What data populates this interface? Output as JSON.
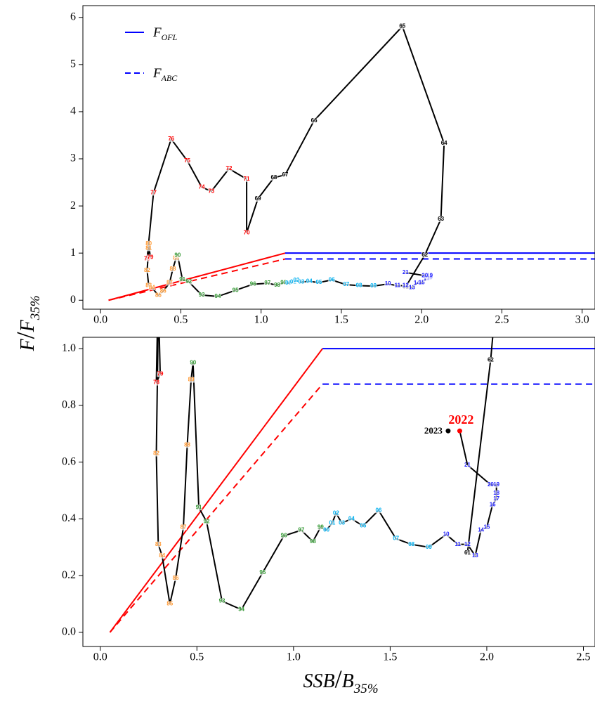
{
  "chart_data": {
    "type": "phase",
    "xlabel": {
      "main": "SSB",
      "sep": "/",
      "ref": "B",
      "sub": "35%"
    },
    "ylabel": {
      "main": "F",
      "sep": "/",
      "ref": "F",
      "sub": "35%"
    },
    "hcr": [
      {
        "name": "F",
        "sub": "OFL",
        "x": [
          0.05,
          1.15
        ],
        "y": [
          0,
          1
        ],
        "dash": false
      },
      {
        "name": "F",
        "sub": "ABC",
        "x": [
          0.05,
          1.15
        ],
        "y": [
          0,
          0.875
        ],
        "dash": true
      }
    ],
    "hcr_colors": [
      "#ff0000",
      "#0000ff"
    ],
    "x": [
      1.9,
      2.02,
      2.12,
      2.14,
      1.88,
      1.33,
      1.15,
      1.08,
      0.98,
      0.91,
      0.91,
      0.8,
      0.69,
      0.63,
      0.54,
      0.44,
      0.33,
      0.29,
      0.31,
      0.3,
      0.3,
      0.29,
      0.3,
      0.32,
      0.36,
      0.39,
      0.43,
      0.45,
      0.47,
      0.48,
      0.51,
      0.55,
      0.63,
      0.73,
      0.84,
      0.95,
      1.04,
      1.1,
      1.14,
      1.17,
      1.2,
      1.22,
      1.25,
      1.3,
      1.36,
      1.44,
      1.53,
      1.61,
      1.7,
      1.79,
      1.85,
      1.9,
      1.94,
      1.97,
      2.0,
      2.03,
      2.05,
      2.05,
      2.05,
      2.02,
      1.9
    ],
    "y": [
      0.28,
      0.96,
      1.72,
      3.33,
      5.81,
      3.81,
      2.66,
      2.6,
      2.15,
      1.43,
      2.57,
      2.79,
      2.31,
      2.4,
      2.96,
      3.42,
      2.28,
      0.88,
      0.91,
      1.2,
      1.1,
      0.63,
      0.31,
      0.27,
      0.1,
      0.19,
      0.37,
      0.66,
      0.89,
      0.95,
      0.44,
      0.39,
      0.11,
      0.08,
      0.21,
      0.34,
      0.36,
      0.32,
      0.37,
      0.36,
      0.385,
      0.42,
      0.385,
      0.4,
      0.375,
      0.43,
      0.33,
      0.31,
      0.3,
      0.345,
      0.31,
      0.31,
      0.27,
      0.36,
      0.37,
      0.45,
      0.47,
      0.49,
      0.52,
      0.52,
      0.59
    ],
    "point_labels": [
      "61",
      "62",
      "63",
      "64",
      "65",
      "66",
      "67",
      "68",
      "69",
      "70",
      "71",
      "72",
      "73",
      "74",
      "75",
      "76",
      "77",
      "78",
      "79",
      "80",
      "81",
      "82",
      "83",
      "84",
      "85",
      "86",
      "87",
      "88",
      "89",
      "90",
      "91",
      "92",
      "93",
      "94",
      "95",
      "96",
      "97",
      "98",
      "99",
      "00",
      "01",
      "02",
      "03",
      "04",
      "05",
      "06",
      "07",
      "08",
      "09",
      "10",
      "11",
      "12",
      "13",
      "14",
      "15",
      "16",
      "17",
      "18",
      "19",
      "20",
      "21"
    ],
    "point_colors": [
      "#000000",
      "#000000",
      "#000000",
      "#000000",
      "#000000",
      "#000000",
      "#000000",
      "#000000",
      "#000000",
      "#ff0000",
      "#ff0000",
      "#ff0000",
      "#ff0000",
      "#ff0000",
      "#ff0000",
      "#ff0000",
      "#ff0000",
      "#ff0000",
      "#ff0000",
      "#ff9933",
      "#ff9933",
      "#ff9933",
      "#ff9933",
      "#ff9933",
      "#ff9933",
      "#ff9933",
      "#ff9933",
      "#ff9933",
      "#ff9933",
      "#339933",
      "#339933",
      "#339933",
      "#339933",
      "#339933",
      "#339933",
      "#339933",
      "#339933",
      "#339933",
      "#339933",
      "#00b0f0",
      "#00b0f0",
      "#00b0f0",
      "#00b0f0",
      "#00b0f0",
      "#00b0f0",
      "#00b0f0",
      "#00b0f0",
      "#00b0f0",
      "#00b0f0",
      "#2222ff",
      "#2222ff",
      "#2222ff",
      "#2222ff",
      "#2222ff",
      "#2222ff",
      "#2222ff",
      "#2222ff",
      "#2222ff",
      "#2222ff",
      "#2222ff",
      "#2222ff"
    ],
    "highlights": [
      {
        "label": "2022",
        "x": 1.86,
        "y": 0.71,
        "color": "#ff0000"
      },
      {
        "label": "2023",
        "x": 1.8,
        "y": 0.71,
        "color": "#000000"
      }
    ],
    "panels": [
      {
        "xlim": [
          -0.11,
          3.08
        ],
        "ylim": [
          -0.19,
          6.25
        ],
        "xticks": [
          {
            "value": 0,
            "label": "0.0"
          },
          0.5,
          {
            "value": 1,
            "label": "1.0"
          },
          1.5,
          {
            "value": 2,
            "label": "2.0"
          },
          2.5,
          {
            "value": 3,
            "label": "3.0"
          }
        ],
        "yticks": [
          0,
          1,
          2,
          3,
          4,
          5,
          6
        ],
        "legend": true
      },
      {
        "xlim": [
          -0.09,
          2.56
        ],
        "ylim": [
          -0.05,
          1.04
        ],
        "xticks": [
          {
            "value": 0,
            "label": "0.0"
          },
          0.5,
          {
            "value": 1,
            "label": "1.0"
          },
          1.5,
          {
            "value": 2,
            "label": "2.0"
          },
          2.5
        ],
        "yticks": [
          {
            "value": 0,
            "label": "0.0"
          },
          0.2,
          0.4,
          0.6,
          0.8,
          {
            "value": 1,
            "label": "1.0"
          }
        ],
        "legend": false
      }
    ]
  }
}
